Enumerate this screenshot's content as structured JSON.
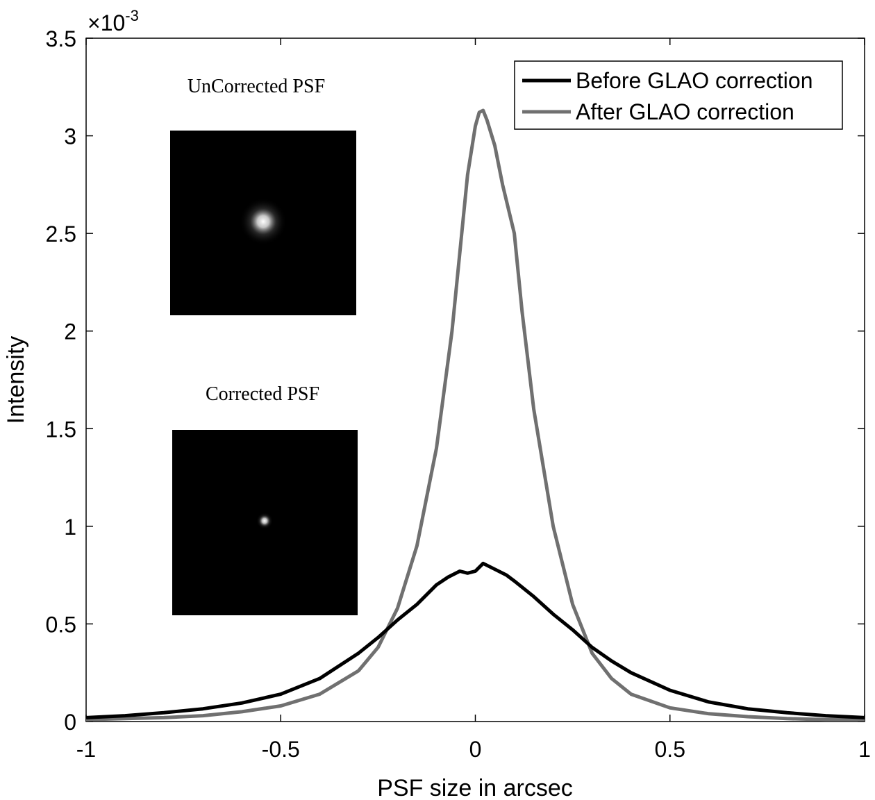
{
  "chart_data": {
    "type": "line",
    "title": "",
    "xlabel": "PSF size in arcsec",
    "ylabel": "Intensity",
    "y_multiplier_label": "×10",
    "y_multiplier_exponent": "-3",
    "xlim": [
      -1,
      1
    ],
    "ylim": [
      0,
      3.5
    ],
    "x_ticks": [
      -1,
      -0.5,
      0,
      0.5,
      1
    ],
    "x_tick_labels": [
      "-1",
      "-0.5",
      "0",
      "0.5",
      "1"
    ],
    "y_ticks": [
      0,
      0.5,
      1,
      1.5,
      2,
      2.5,
      3,
      3.5
    ],
    "y_tick_labels": [
      "0",
      "0.5",
      "1",
      "1.5",
      "2",
      "2.5",
      "3",
      "3.5"
    ],
    "grid": false,
    "legend_position": "top-right",
    "series": [
      {
        "name": "Before GLAO correction",
        "color": "#000000",
        "x": [
          -1,
          -0.9,
          -0.8,
          -0.7,
          -0.6,
          -0.5,
          -0.4,
          -0.3,
          -0.25,
          -0.2,
          -0.15,
          -0.1,
          -0.07,
          -0.04,
          -0.02,
          0,
          0.02,
          0.05,
          0.08,
          0.1,
          0.15,
          0.2,
          0.25,
          0.3,
          0.35,
          0.4,
          0.5,
          0.6,
          0.7,
          0.8,
          0.9,
          1
        ],
        "y": [
          0.02,
          0.03,
          0.045,
          0.065,
          0.095,
          0.14,
          0.22,
          0.35,
          0.43,
          0.52,
          0.6,
          0.7,
          0.74,
          0.77,
          0.76,
          0.77,
          0.81,
          0.78,
          0.75,
          0.72,
          0.64,
          0.55,
          0.47,
          0.38,
          0.31,
          0.25,
          0.16,
          0.1,
          0.065,
          0.045,
          0.03,
          0.02
        ]
      },
      {
        "name": "After GLAO correction",
        "color": "#707070",
        "x": [
          -1,
          -0.9,
          -0.8,
          -0.7,
          -0.6,
          -0.5,
          -0.4,
          -0.3,
          -0.25,
          -0.2,
          -0.15,
          -0.1,
          -0.08,
          -0.06,
          -0.04,
          -0.02,
          0,
          0.01,
          0.02,
          0.03,
          0.05,
          0.07,
          0.1,
          0.12,
          0.15,
          0.2,
          0.25,
          0.3,
          0.35,
          0.4,
          0.5,
          0.6,
          0.7,
          0.8,
          0.9,
          1
        ],
        "y": [
          0.01,
          0.015,
          0.02,
          0.03,
          0.05,
          0.08,
          0.14,
          0.26,
          0.38,
          0.58,
          0.9,
          1.4,
          1.7,
          2.0,
          2.4,
          2.8,
          3.05,
          3.12,
          3.13,
          3.08,
          2.95,
          2.75,
          2.5,
          2.1,
          1.6,
          1.0,
          0.6,
          0.35,
          0.22,
          0.14,
          0.07,
          0.04,
          0.025,
          0.015,
          0.01,
          0.01
        ]
      }
    ]
  },
  "insets": {
    "uncorrected": {
      "title": "UnCorrected PSF"
    },
    "corrected": {
      "title": "Corrected PSF"
    }
  },
  "colors": {
    "axis": "#000000",
    "before": "#000000",
    "after": "#707070",
    "inset_bg": "#000000"
  }
}
